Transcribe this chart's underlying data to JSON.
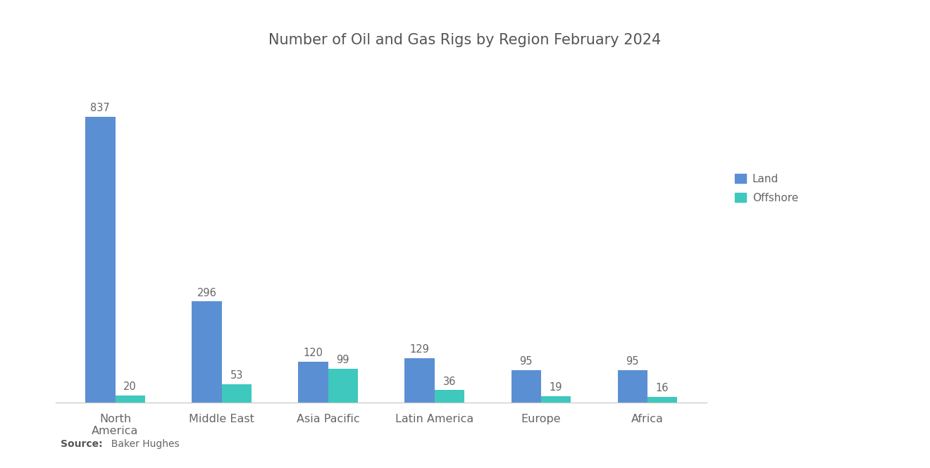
{
  "title": "Number of Oil and Gas Rigs by Region February 2024",
  "categories": [
    "North\nAmerica",
    "Middle East",
    "Asia Pacific",
    "Latin America",
    "Europe",
    "Africa"
  ],
  "land_values": [
    837,
    296,
    120,
    129,
    95,
    95
  ],
  "offshore_values": [
    20,
    53,
    99,
    36,
    19,
    16
  ],
  "land_color": "#5B8FD4",
  "offshore_color": "#3EC8BE",
  "background_color": "#ffffff",
  "title_fontsize": 15,
  "label_fontsize": 11,
  "tick_fontsize": 11.5,
  "legend_labels": [
    "Land",
    "Offshore"
  ],
  "source_bold": "Source:",
  "source_rest": "  Baker Hughes",
  "ylim": [
    0,
    960
  ],
  "bar_width": 0.28,
  "value_label_fontsize": 10.5
}
